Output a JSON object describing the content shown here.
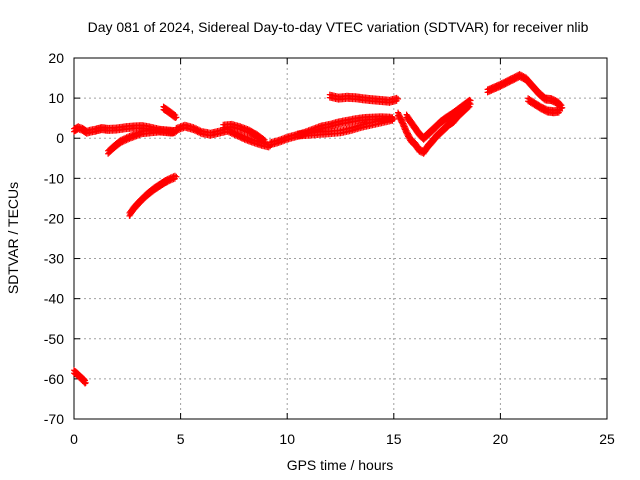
{
  "chart_data": {
    "type": "scatter",
    "title": "Day 081 of 2024, Sidereal Day-to-day VTEC variation (SDTVAR) for receiver nlib",
    "xlabel": "GPS time / hours",
    "ylabel": "SDTVAR / TECUs",
    "xlim": [
      0,
      25
    ],
    "ylim": [
      -70,
      20
    ],
    "xticks": [
      0,
      5,
      10,
      15,
      20,
      25
    ],
    "yticks": [
      -70,
      -60,
      -50,
      -40,
      -30,
      -20,
      -10,
      0,
      10,
      20
    ],
    "grid": true,
    "marker": "+",
    "color": "#ff0000",
    "series": [
      {
        "name": "segment-1",
        "x": [
          0.0,
          0.15,
          0.3,
          0.45,
          0.55
        ],
        "y": [
          -58.2,
          -58.8,
          -59.6,
          -60.3,
          -61.0
        ]
      },
      {
        "name": "segment-2",
        "x": [
          0.0,
          0.2,
          0.4,
          0.6,
          0.8,
          1.0,
          1.3,
          1.6,
          2.0,
          2.4,
          2.8,
          3.2,
          3.6,
          4.0,
          4.4,
          4.8
        ],
        "y": [
          2.0,
          2.6,
          2.2,
          1.5,
          1.8,
          2.0,
          2.4,
          2.2,
          2.3,
          2.6,
          2.8,
          2.9,
          2.5,
          2.0,
          1.8,
          1.6
        ]
      },
      {
        "name": "segment-3",
        "x": [
          1.6,
          1.8,
          2.0,
          2.2,
          2.4,
          2.6,
          2.8,
          3.0,
          3.2,
          3.6,
          4.0,
          4.4,
          4.7
        ],
        "y": [
          -3.5,
          -2.5,
          -1.6,
          -0.8,
          -0.3,
          0.2,
          0.6,
          1.0,
          1.4,
          1.6,
          1.8,
          1.6,
          1.5
        ]
      },
      {
        "name": "segment-4",
        "x": [
          2.6,
          2.8,
          3.0,
          3.2,
          3.4,
          3.6,
          3.8,
          4.0,
          4.2,
          4.4,
          4.6,
          4.8
        ],
        "y": [
          -19.0,
          -17.5,
          -16.3,
          -15.2,
          -14.2,
          -13.3,
          -12.5,
          -11.8,
          -11.1,
          -10.5,
          -10.0,
          -9.6
        ]
      },
      {
        "name": "segment-5",
        "x": [
          4.2,
          4.4,
          4.6,
          4.8
        ],
        "y": [
          7.5,
          6.8,
          6.0,
          5.2
        ]
      },
      {
        "name": "segment-6",
        "x": [
          4.8,
          5.2,
          5.6,
          6.0,
          6.4,
          6.8,
          7.2,
          7.6,
          8.0,
          8.4,
          8.8,
          9.2
        ],
        "y": [
          2.2,
          3.0,
          2.4,
          1.4,
          1.0,
          1.5,
          2.0,
          1.0,
          0.0,
          -0.8,
          -1.5,
          -2.0
        ]
      },
      {
        "name": "segment-7",
        "x": [
          7.0,
          7.4,
          7.8,
          8.2,
          8.6,
          9.0
        ],
        "y": [
          3.0,
          3.2,
          2.6,
          1.8,
          0.6,
          -1.0
        ]
      },
      {
        "name": "segment-8",
        "x": [
          9.2,
          9.6,
          10.0,
          10.4,
          10.8,
          11.2,
          11.6,
          12.0,
          12.4,
          12.8,
          13.2,
          13.6,
          14.0,
          14.4,
          14.8,
          15.0
        ],
        "y": [
          -1.4,
          -0.8,
          0.0,
          0.6,
          1.2,
          2.0,
          2.8,
          3.2,
          3.8,
          4.2,
          4.6,
          4.9,
          5.0,
          5.1,
          5.0,
          4.8
        ]
      },
      {
        "name": "segment-9",
        "x": [
          12.0,
          12.4,
          12.8,
          13.2,
          13.6,
          14.0,
          14.4,
          14.8,
          15.2
        ],
        "y": [
          10.5,
          10.0,
          10.2,
          10.1,
          9.8,
          9.6,
          9.4,
          9.2,
          9.8
        ]
      },
      {
        "name": "segment-10",
        "x": [
          10.5,
          11.0,
          11.5,
          12.0,
          12.5,
          13.0,
          13.5,
          14.0,
          14.5,
          15.0
        ],
        "y": [
          0.8,
          1.0,
          1.2,
          1.4,
          1.6,
          2.2,
          3.0,
          3.6,
          4.2,
          4.8
        ]
      },
      {
        "name": "segment-11",
        "x": [
          15.2,
          15.4,
          15.6,
          15.8,
          16.0,
          16.2,
          16.4,
          16.6,
          16.8,
          17.0,
          17.2,
          17.4,
          17.6,
          17.8,
          18.0,
          18.2,
          18.4,
          18.6
        ],
        "y": [
          6.0,
          4.0,
          1.5,
          -0.5,
          -1.5,
          -3.0,
          -3.5,
          -2.0,
          -0.8,
          0.5,
          1.5,
          2.5,
          3.5,
          4.2,
          5.5,
          6.5,
          7.5,
          8.5
        ]
      },
      {
        "name": "segment-12",
        "x": [
          15.6,
          15.8,
          16.0,
          16.2,
          16.4,
          16.6,
          16.8,
          17.0,
          17.2,
          17.4,
          17.6,
          17.8,
          18.0,
          18.2,
          18.4,
          18.6
        ],
        "y": [
          5.5,
          4.0,
          2.5,
          1.0,
          0.0,
          1.0,
          2.0,
          3.0,
          4.0,
          4.8,
          5.5,
          6.2,
          7.0,
          7.8,
          8.6,
          9.4
        ]
      },
      {
        "name": "segment-13",
        "x": [
          19.4,
          19.7,
          20.0,
          20.3,
          20.6,
          20.9,
          21.2,
          21.5,
          21.8,
          22.1,
          22.4,
          22.7,
          22.9
        ],
        "y": [
          11.8,
          12.5,
          13.2,
          14.0,
          14.8,
          15.6,
          14.8,
          13.0,
          11.2,
          9.8,
          9.6,
          8.8,
          7.6
        ]
      },
      {
        "name": "segment-14",
        "x": [
          21.3,
          21.6,
          21.9,
          22.2,
          22.5,
          22.8
        ],
        "y": [
          9.6,
          8.6,
          7.6,
          6.8,
          6.6,
          6.8
        ]
      }
    ]
  }
}
